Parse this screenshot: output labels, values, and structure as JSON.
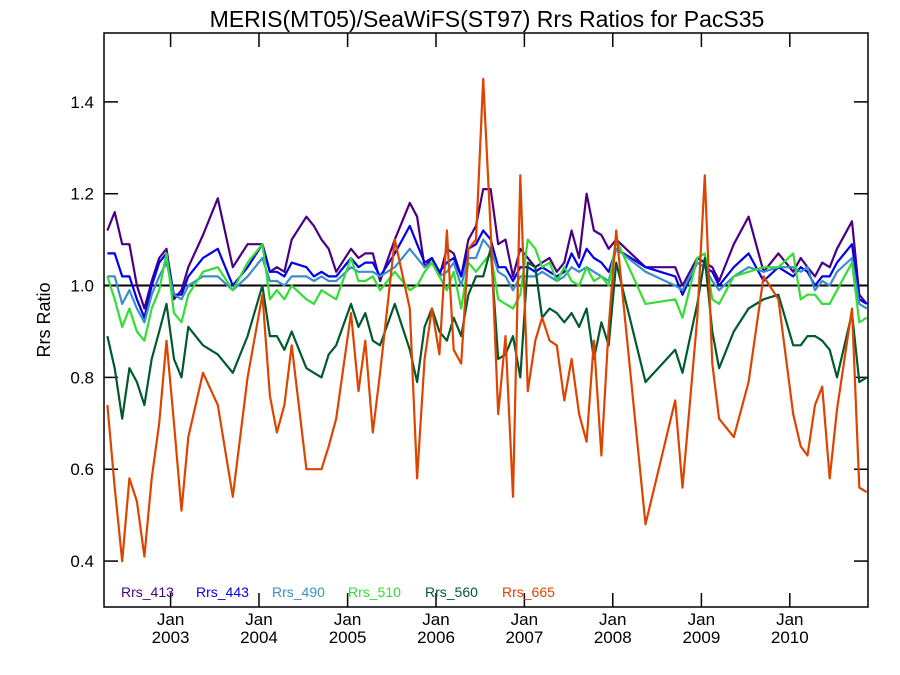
{
  "chart_data": {
    "type": "line",
    "title": "MERIS(MT05)/SeaWiFS(ST97)  Rrs Ratios for PacS35",
    "xlabel": "",
    "ylabel": "Rrs Ratio",
    "x_range": [
      "2002-04-01",
      "2010-11-20"
    ],
    "ylim": [
      0.3,
      1.55
    ],
    "y_ticks": [
      {
        "value": 0.4,
        "label": "0.4"
      },
      {
        "value": 0.6,
        "label": "0.6"
      },
      {
        "value": 0.8,
        "label": "0.8"
      },
      {
        "value": 1.0,
        "label": "1.0"
      },
      {
        "value": 1.2,
        "label": "1.2"
      },
      {
        "value": 1.4,
        "label": "1.4"
      }
    ],
    "x_ticks": [
      {
        "date": "2003-01-01",
        "month": "Jan",
        "year": "2003"
      },
      {
        "date": "2004-01-01",
        "month": "Jan",
        "year": "2004"
      },
      {
        "date": "2005-01-01",
        "month": "Jan",
        "year": "2005"
      },
      {
        "date": "2006-01-01",
        "month": "Jan",
        "year": "2006"
      },
      {
        "date": "2007-01-01",
        "month": "Jan",
        "year": "2007"
      },
      {
        "date": "2008-01-01",
        "month": "Jan",
        "year": "2008"
      },
      {
        "date": "2009-01-01",
        "month": "Jan",
        "year": "2009"
      },
      {
        "date": "2010-01-01",
        "month": "Jan",
        "year": "2010"
      }
    ],
    "reference_line": 1.0,
    "grid": false,
    "legend_position": "bottom-left",
    "x": [
      "2002-04",
      "2002-05",
      "2002-06",
      "2002-07",
      "2002-08",
      "2002-09",
      "2002-10",
      "2002-11",
      "2002-12",
      "2003-01",
      "2003-02",
      "2003-03",
      "2003-05",
      "2003-07",
      "2003-09",
      "2003-11",
      "2004-01",
      "2004-02",
      "2004-03",
      "2004-04",
      "2004-05",
      "2004-07",
      "2004-08",
      "2004-09",
      "2004-10",
      "2004-11",
      "2005-01",
      "2005-02",
      "2005-03",
      "2005-04",
      "2005-05",
      "2005-07",
      "2005-09",
      "2005-10",
      "2005-11",
      "2005-12",
      "2006-01",
      "2006-02",
      "2006-03",
      "2006-04",
      "2006-05",
      "2006-06",
      "2006-07",
      "2006-08",
      "2006-09",
      "2006-10",
      "2006-11",
      "2006-12",
      "2007-01",
      "2007-02",
      "2007-03",
      "2007-04",
      "2007-05",
      "2007-06",
      "2007-07",
      "2007-08",
      "2007-09",
      "2007-10",
      "2007-11",
      "2007-12",
      "2008-01",
      "2008-05",
      "2008-09",
      "2008-10",
      "2008-12",
      "2009-01",
      "2009-02",
      "2009-03",
      "2009-05",
      "2009-07",
      "2009-09",
      "2009-11",
      "2010-01",
      "2010-02",
      "2010-03",
      "2010-04",
      "2010-05",
      "2010-06",
      "2010-07",
      "2010-09",
      "2010-10",
      "2010-11"
    ],
    "series": [
      {
        "name": "Rrs_413",
        "color": "#4b0082",
        "values": [
          1.12,
          1.16,
          1.09,
          1.09,
          1.0,
          0.95,
          1.01,
          1.06,
          1.08,
          0.97,
          0.99,
          1.04,
          1.11,
          1.19,
          1.04,
          1.09,
          1.09,
          1.03,
          1.04,
          1.03,
          1.1,
          1.15,
          1.13,
          1.1,
          1.08,
          1.03,
          1.08,
          1.06,
          1.07,
          1.07,
          1.01,
          1.1,
          1.18,
          1.15,
          1.04,
          1.06,
          1.02,
          1.08,
          1.07,
          1.02,
          1.1,
          1.13,
          1.21,
          1.21,
          1.09,
          1.1,
          1.02,
          1.08,
          1.06,
          1.04,
          1.05,
          1.06,
          1.03,
          1.05,
          1.12,
          1.06,
          1.2,
          1.12,
          1.11,
          1.08,
          1.1,
          1.04,
          1.04,
          1.0,
          1.06,
          1.05,
          1.04,
          1.01,
          1.09,
          1.15,
          1.03,
          1.07,
          1.03,
          1.06,
          1.04,
          1.02,
          1.05,
          1.04,
          1.08,
          1.14,
          0.98,
          0.96
        ]
      },
      {
        "name": "Rrs_443",
        "color": "#0000ee",
        "values": [
          1.07,
          1.07,
          1.02,
          1.02,
          0.97,
          0.93,
          1.0,
          1.05,
          1.07,
          0.98,
          0.98,
          1.02,
          1.06,
          1.08,
          1.0,
          1.04,
          1.09,
          1.03,
          1.03,
          1.02,
          1.05,
          1.04,
          1.02,
          1.03,
          1.02,
          1.02,
          1.06,
          1.04,
          1.05,
          1.05,
          1.02,
          1.07,
          1.13,
          1.09,
          1.05,
          1.06,
          1.03,
          1.05,
          1.06,
          1.02,
          1.08,
          1.09,
          1.12,
          1.1,
          1.04,
          1.04,
          1.01,
          1.04,
          1.04,
          1.03,
          1.04,
          1.03,
          1.02,
          1.03,
          1.07,
          1.04,
          1.08,
          1.06,
          1.05,
          1.03,
          1.08,
          1.04,
          1.02,
          0.98,
          1.05,
          1.04,
          1.03,
          1.0,
          1.04,
          1.07,
          1.01,
          1.04,
          1.02,
          1.04,
          1.03,
          1.0,
          1.02,
          1.02,
          1.05,
          1.09,
          0.97,
          0.96
        ]
      },
      {
        "name": "Rrs_490",
        "color": "#3a8ec9",
        "values": [
          1.02,
          1.02,
          0.96,
          0.99,
          0.95,
          0.92,
          0.98,
          1.02,
          1.05,
          0.98,
          0.97,
          1.0,
          1.02,
          1.02,
          0.99,
          1.02,
          1.06,
          1.01,
          1.01,
          1.0,
          1.02,
          1.02,
          1.01,
          1.02,
          1.01,
          1.01,
          1.04,
          1.03,
          1.03,
          1.03,
          1.02,
          1.04,
          1.08,
          1.06,
          1.04,
          1.05,
          1.02,
          1.03,
          1.05,
          1.0,
          1.06,
          1.06,
          1.1,
          1.08,
          1.03,
          1.02,
          0.99,
          1.02,
          1.02,
          1.02,
          1.03,
          1.02,
          1.01,
          1.02,
          1.04,
          1.03,
          1.04,
          1.03,
          1.02,
          1.01,
          1.08,
          1.03,
          1.0,
          0.99,
          1.05,
          1.04,
          1.01,
          0.99,
          1.02,
          1.04,
          1.03,
          1.04,
          1.04,
          1.03,
          1.04,
          0.99,
          1.01,
          1.0,
          1.03,
          1.06,
          0.96,
          0.95
        ]
      },
      {
        "name": "Rrs_510",
        "color": "#33dd33",
        "values": [
          1.02,
          0.97,
          0.91,
          0.95,
          0.9,
          0.88,
          0.95,
          0.99,
          1.07,
          0.94,
          0.92,
          0.98,
          1.03,
          1.04,
          0.99,
          1.05,
          1.09,
          0.97,
          0.99,
          0.97,
          1.0,
          0.97,
          0.96,
          0.99,
          0.98,
          0.97,
          1.06,
          1.01,
          1.01,
          1.02,
          0.99,
          1.03,
          0.99,
          1.0,
          1.03,
          1.05,
          1.02,
          0.99,
          1.03,
          0.95,
          1.05,
          1.03,
          1.05,
          1.07,
          0.97,
          0.96,
          0.95,
          0.98,
          1.1,
          1.08,
          1.04,
          1.05,
          1.01,
          1.04,
          1.01,
          1.0,
          1.04,
          1.01,
          1.02,
          1.0,
          1.1,
          0.96,
          0.97,
          0.93,
          1.06,
          1.07,
          0.97,
          0.96,
          1.02,
          1.03,
          1.04,
          1.04,
          1.07,
          0.97,
          0.98,
          0.98,
          0.96,
          0.96,
          0.99,
          1.05,
          0.92,
          0.93
        ]
      },
      {
        "name": "Rrs_560",
        "color": "#005a2e",
        "values": [
          0.89,
          0.82,
          0.71,
          0.82,
          0.79,
          0.74,
          0.84,
          0.9,
          0.96,
          0.84,
          0.8,
          0.91,
          0.87,
          0.85,
          0.81,
          0.89,
          1.0,
          0.89,
          0.89,
          0.86,
          0.9,
          0.82,
          0.81,
          0.8,
          0.85,
          0.87,
          0.96,
          0.91,
          0.94,
          0.88,
          0.87,
          0.96,
          0.86,
          0.79,
          0.91,
          0.95,
          0.9,
          0.88,
          0.93,
          0.89,
          0.98,
          1.02,
          1.02,
          1.08,
          0.84,
          0.85,
          0.89,
          0.8,
          1.05,
          1.04,
          0.93,
          0.95,
          0.94,
          0.92,
          0.94,
          0.91,
          0.95,
          0.84,
          0.92,
          0.87,
          1.05,
          0.79,
          0.86,
          0.81,
          0.96,
          1.06,
          0.9,
          0.82,
          0.9,
          0.95,
          0.97,
          0.98,
          0.87,
          0.87,
          0.89,
          0.89,
          0.88,
          0.86,
          0.8,
          0.94,
          0.79,
          0.8
        ]
      },
      {
        "name": "Rrs_665",
        "color": "#dd4400",
        "values": [
          0.74,
          0.56,
          0.4,
          0.58,
          0.53,
          0.41,
          0.58,
          0.7,
          0.88,
          0.7,
          0.51,
          0.67,
          0.81,
          0.74,
          0.54,
          0.8,
          0.98,
          0.76,
          0.68,
          0.74,
          0.87,
          0.6,
          0.6,
          0.6,
          0.65,
          0.71,
          0.94,
          0.77,
          0.88,
          0.68,
          0.81,
          1.1,
          0.95,
          0.58,
          0.84,
          0.95,
          0.85,
          1.12,
          0.86,
          0.83,
          1.08,
          1.1,
          1.45,
          1.12,
          0.72,
          0.89,
          0.54,
          1.24,
          0.77,
          0.88,
          0.93,
          0.88,
          0.87,
          0.75,
          0.84,
          0.72,
          0.66,
          0.88,
          0.63,
          0.91,
          1.12,
          0.48,
          0.75,
          0.56,
          0.93,
          1.24,
          0.83,
          0.71,
          0.67,
          0.79,
          1.02,
          0.97,
          0.72,
          0.65,
          0.63,
          0.74,
          0.78,
          0.58,
          0.73,
          0.95,
          0.56,
          0.55
        ]
      }
    ]
  }
}
